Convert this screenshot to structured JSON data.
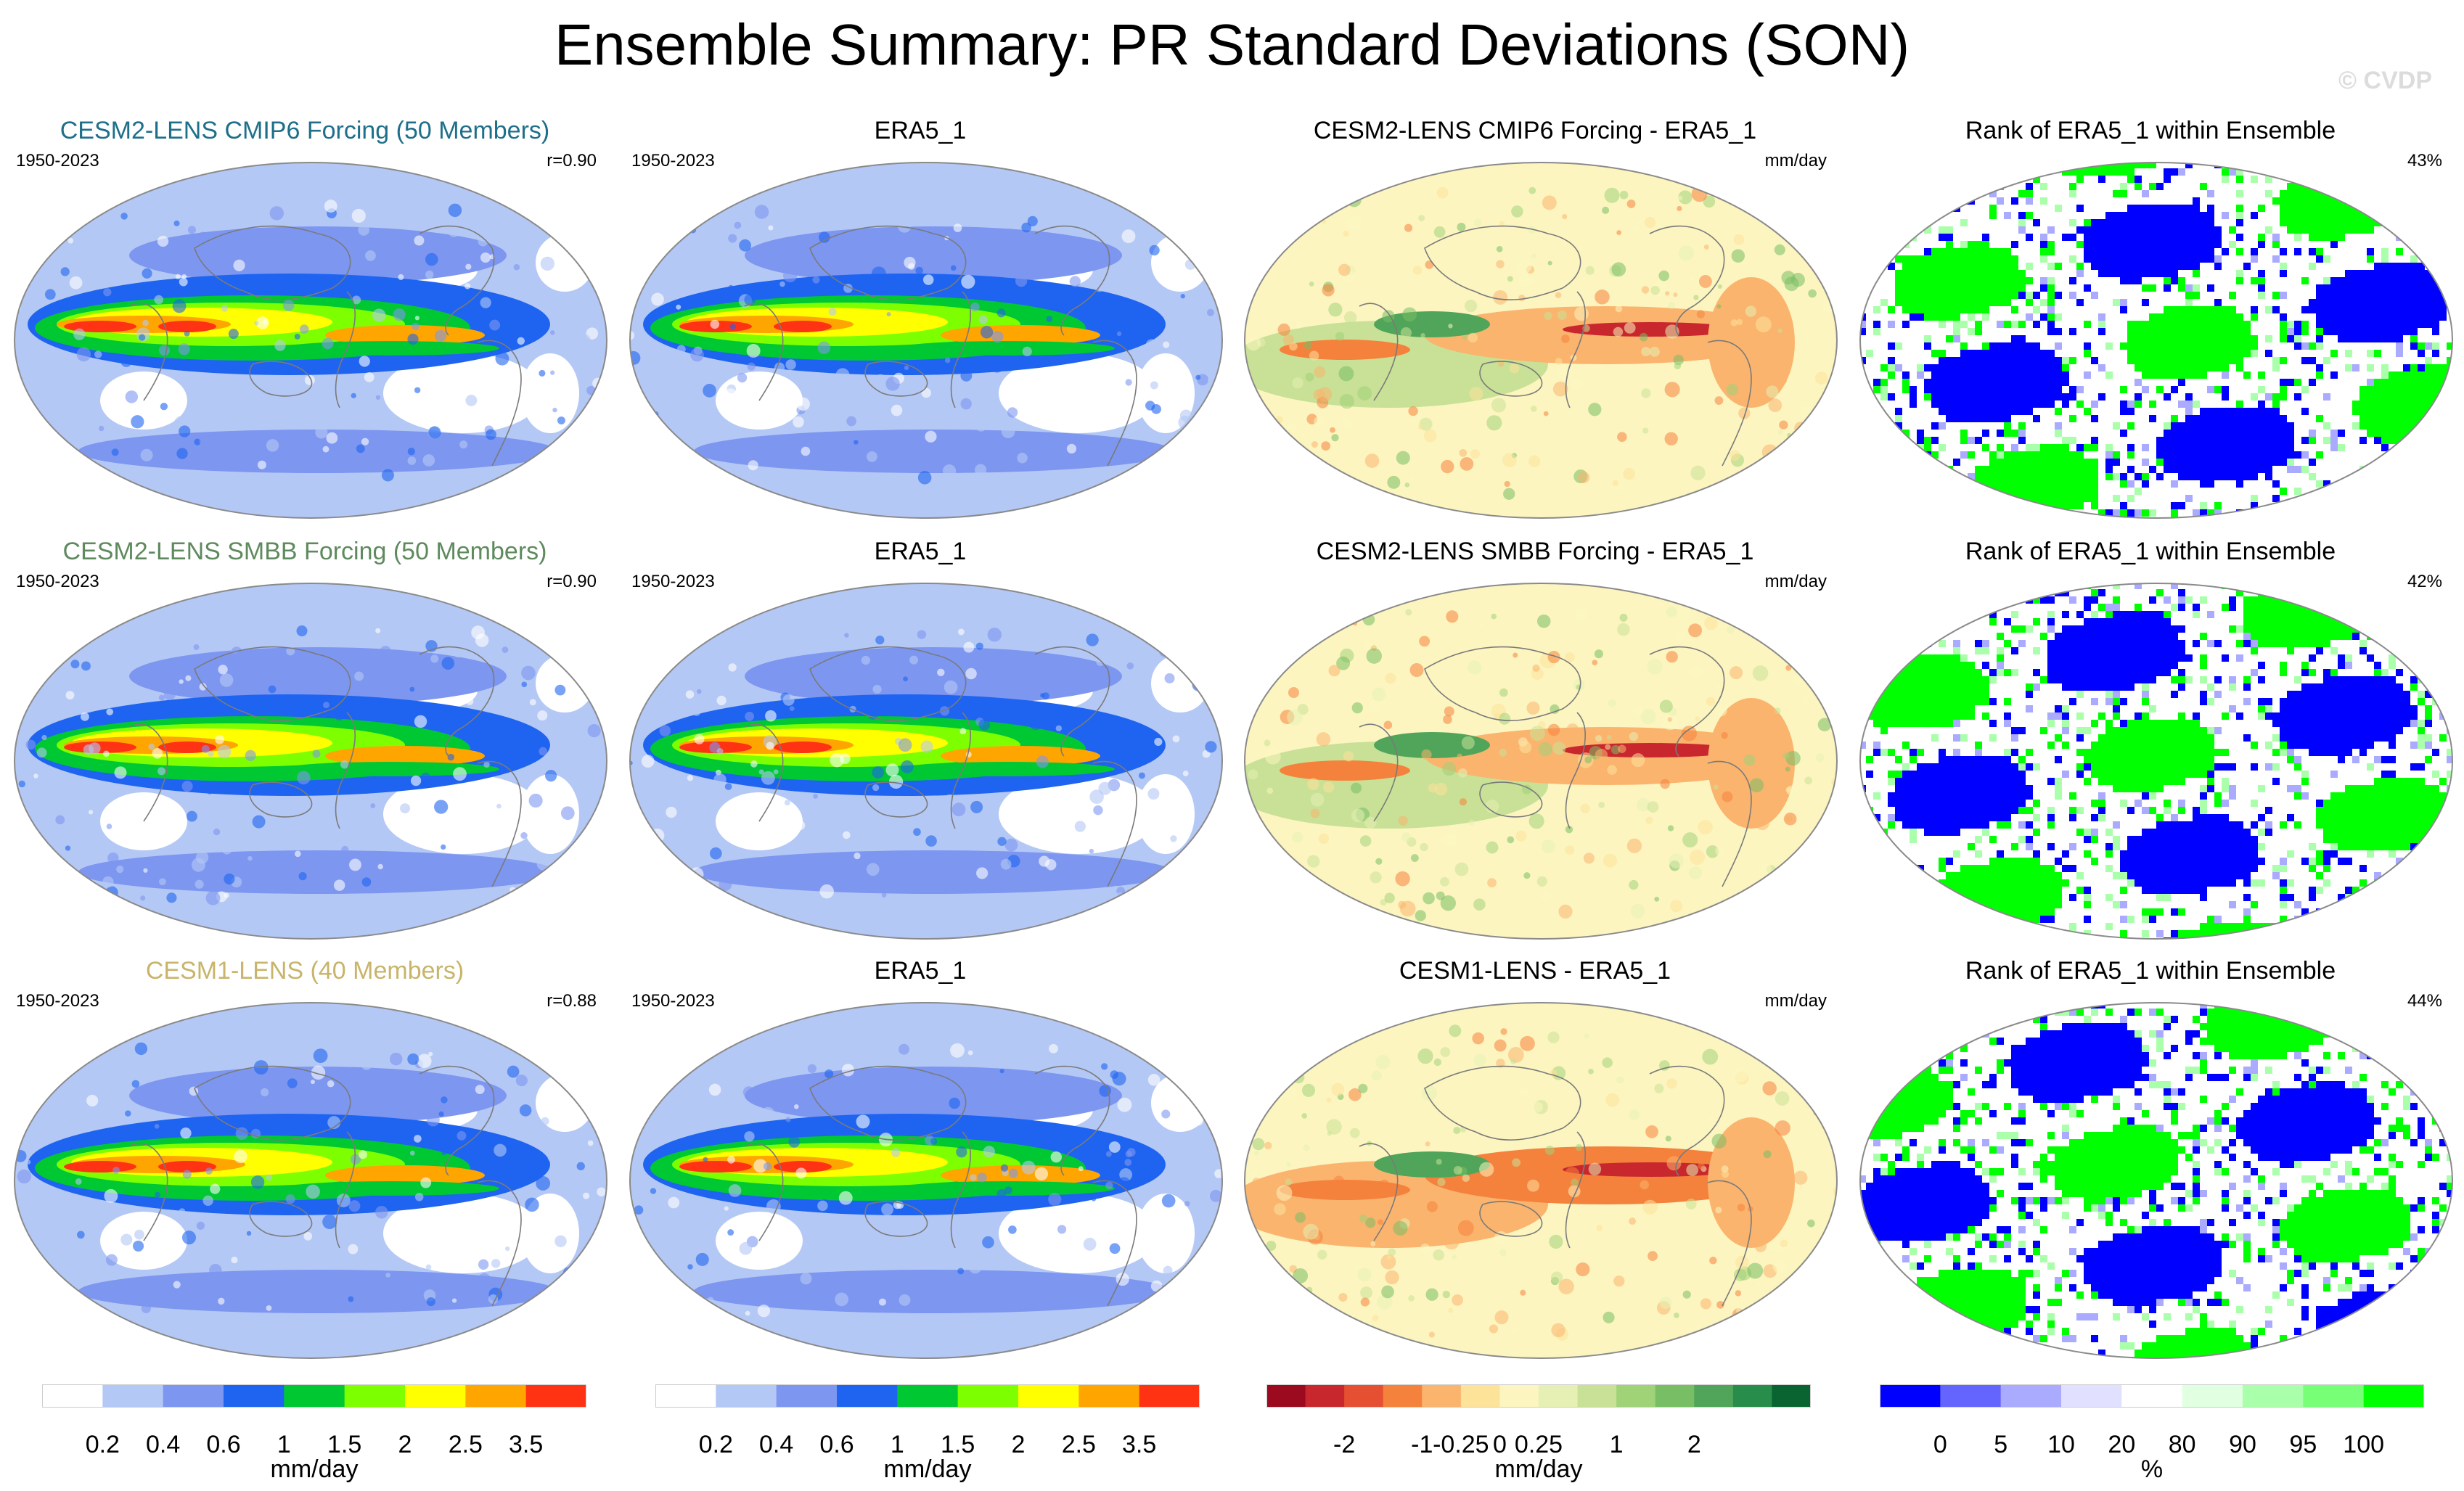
{
  "title": "Ensemble Summary: PR Standard Deviations (SON)",
  "watermark": "© CVDP",
  "rows": [
    {
      "ensemble": {
        "title": "CESM2-LENS CMIP6 Forcing (50 Members)",
        "title_color": "#1e6f8a",
        "period": "1950-2023",
        "r": "r=0.90"
      },
      "obs": {
        "title": "ERA5_1",
        "period": "1950-2023"
      },
      "diff": {
        "title": "CESM2-LENS CMIP6 Forcing - ERA5_1",
        "unit": "mm/day"
      },
      "rank": {
        "title": "Rank of ERA5_1 within Ensemble",
        "pct": "43%"
      }
    },
    {
      "ensemble": {
        "title": "CESM2-LENS SMBB Forcing (50 Members)",
        "title_color": "#5e8a5e",
        "period": "1950-2023",
        "r": "r=0.90"
      },
      "obs": {
        "title": "ERA5_1",
        "period": "1950-2023"
      },
      "diff": {
        "title": "CESM2-LENS SMBB Forcing - ERA5_1",
        "unit": "mm/day"
      },
      "rank": {
        "title": "Rank of ERA5_1 within Ensemble",
        "pct": "42%"
      }
    },
    {
      "ensemble": {
        "title": "CESM1-LENS (40 Members)",
        "title_color": "#c8b46a",
        "period": "1950-2023",
        "r": "r=0.88"
      },
      "obs": {
        "title": "ERA5_1",
        "period": "1950-2023"
      },
      "diff": {
        "title": "CESM1-LENS - ERA5_1",
        "unit": "mm/day"
      },
      "rank": {
        "title": "Rank of ERA5_1 within Ensemble",
        "pct": "44%"
      }
    }
  ],
  "chart_data": [
    {
      "type": "heatmap",
      "title": "CESM2-LENS CMIP6 Forcing (50 Members)",
      "subtitle": "1950-2023",
      "annotation": "r=0.90",
      "field": "precipitation standard deviation",
      "unit": "mm/day",
      "colorbar": "std"
    },
    {
      "type": "heatmap",
      "title": "ERA5_1",
      "subtitle": "1950-2023",
      "field": "precipitation standard deviation",
      "unit": "mm/day",
      "colorbar": "std"
    },
    {
      "type": "heatmap",
      "title": "CESM2-LENS CMIP6 Forcing - ERA5_1",
      "field": "difference",
      "unit": "mm/day",
      "colorbar": "diff"
    },
    {
      "type": "heatmap",
      "title": "Rank of ERA5_1 within Ensemble",
      "annotation": "43%",
      "unit": "%",
      "colorbar": "rank"
    },
    {
      "type": "heatmap",
      "title": "CESM2-LENS SMBB Forcing (50 Members)",
      "subtitle": "1950-2023",
      "annotation": "r=0.90",
      "unit": "mm/day",
      "colorbar": "std"
    },
    {
      "type": "heatmap",
      "title": "ERA5_1",
      "subtitle": "1950-2023",
      "unit": "mm/day",
      "colorbar": "std"
    },
    {
      "type": "heatmap",
      "title": "CESM2-LENS SMBB Forcing - ERA5_1",
      "unit": "mm/day",
      "colorbar": "diff"
    },
    {
      "type": "heatmap",
      "title": "Rank of ERA5_1 within Ensemble",
      "annotation": "42%",
      "unit": "%",
      "colorbar": "rank"
    },
    {
      "type": "heatmap",
      "title": "CESM1-LENS (40 Members)",
      "subtitle": "1950-2023",
      "annotation": "r=0.88",
      "unit": "mm/day",
      "colorbar": "std"
    },
    {
      "type": "heatmap",
      "title": "ERA5_1",
      "subtitle": "1950-2023",
      "unit": "mm/day",
      "colorbar": "std"
    },
    {
      "type": "heatmap",
      "title": "CESM1-LENS - ERA5_1",
      "unit": "mm/day",
      "colorbar": "diff"
    },
    {
      "type": "heatmap",
      "title": "Rank of ERA5_1 within Ensemble",
      "annotation": "44%",
      "unit": "%",
      "colorbar": "rank"
    }
  ],
  "colorbars": {
    "std": {
      "unit": "mm/day",
      "colors": [
        "#ffffff",
        "#b4c8f5",
        "#7d96f0",
        "#1e64f0",
        "#00c832",
        "#7dff00",
        "#ffff00",
        "#ffa500",
        "#ff3214"
      ],
      "labels": [
        "0.2",
        "0.4",
        "0.6",
        "1",
        "1.5",
        "2",
        "2.5",
        "3.5"
      ]
    },
    "diff": {
      "unit": "mm/day",
      "colors": [
        "#9b0a1e",
        "#c8282d",
        "#e65032",
        "#f5823c",
        "#fab46e",
        "#fde29a",
        "#fcf5c0",
        "#e6f0b4",
        "#c8e196",
        "#a0d278",
        "#78be64",
        "#50a55a",
        "#288c4b",
        "#0a6432"
      ],
      "labels": [
        "-2",
        "-1",
        "-0.25",
        "0",
        "0.25",
        "1",
        "2"
      ],
      "label_bounds": [
        2,
        4,
        5,
        6,
        7,
        9,
        11
      ]
    },
    "rank": {
      "unit": "%",
      "colors": [
        "#0000ff",
        "#6464ff",
        "#aaaaff",
        "#e1e1ff",
        "#ffffff",
        "#e1ffe1",
        "#aaffaa",
        "#78ff78",
        "#00ff00"
      ],
      "labels": [
        "0",
        "5",
        "10",
        "20",
        "80",
        "90",
        "95",
        "100"
      ]
    }
  },
  "colors": {
    "land_outline": "#7a7a7a",
    "border": "#8a8a8a"
  }
}
